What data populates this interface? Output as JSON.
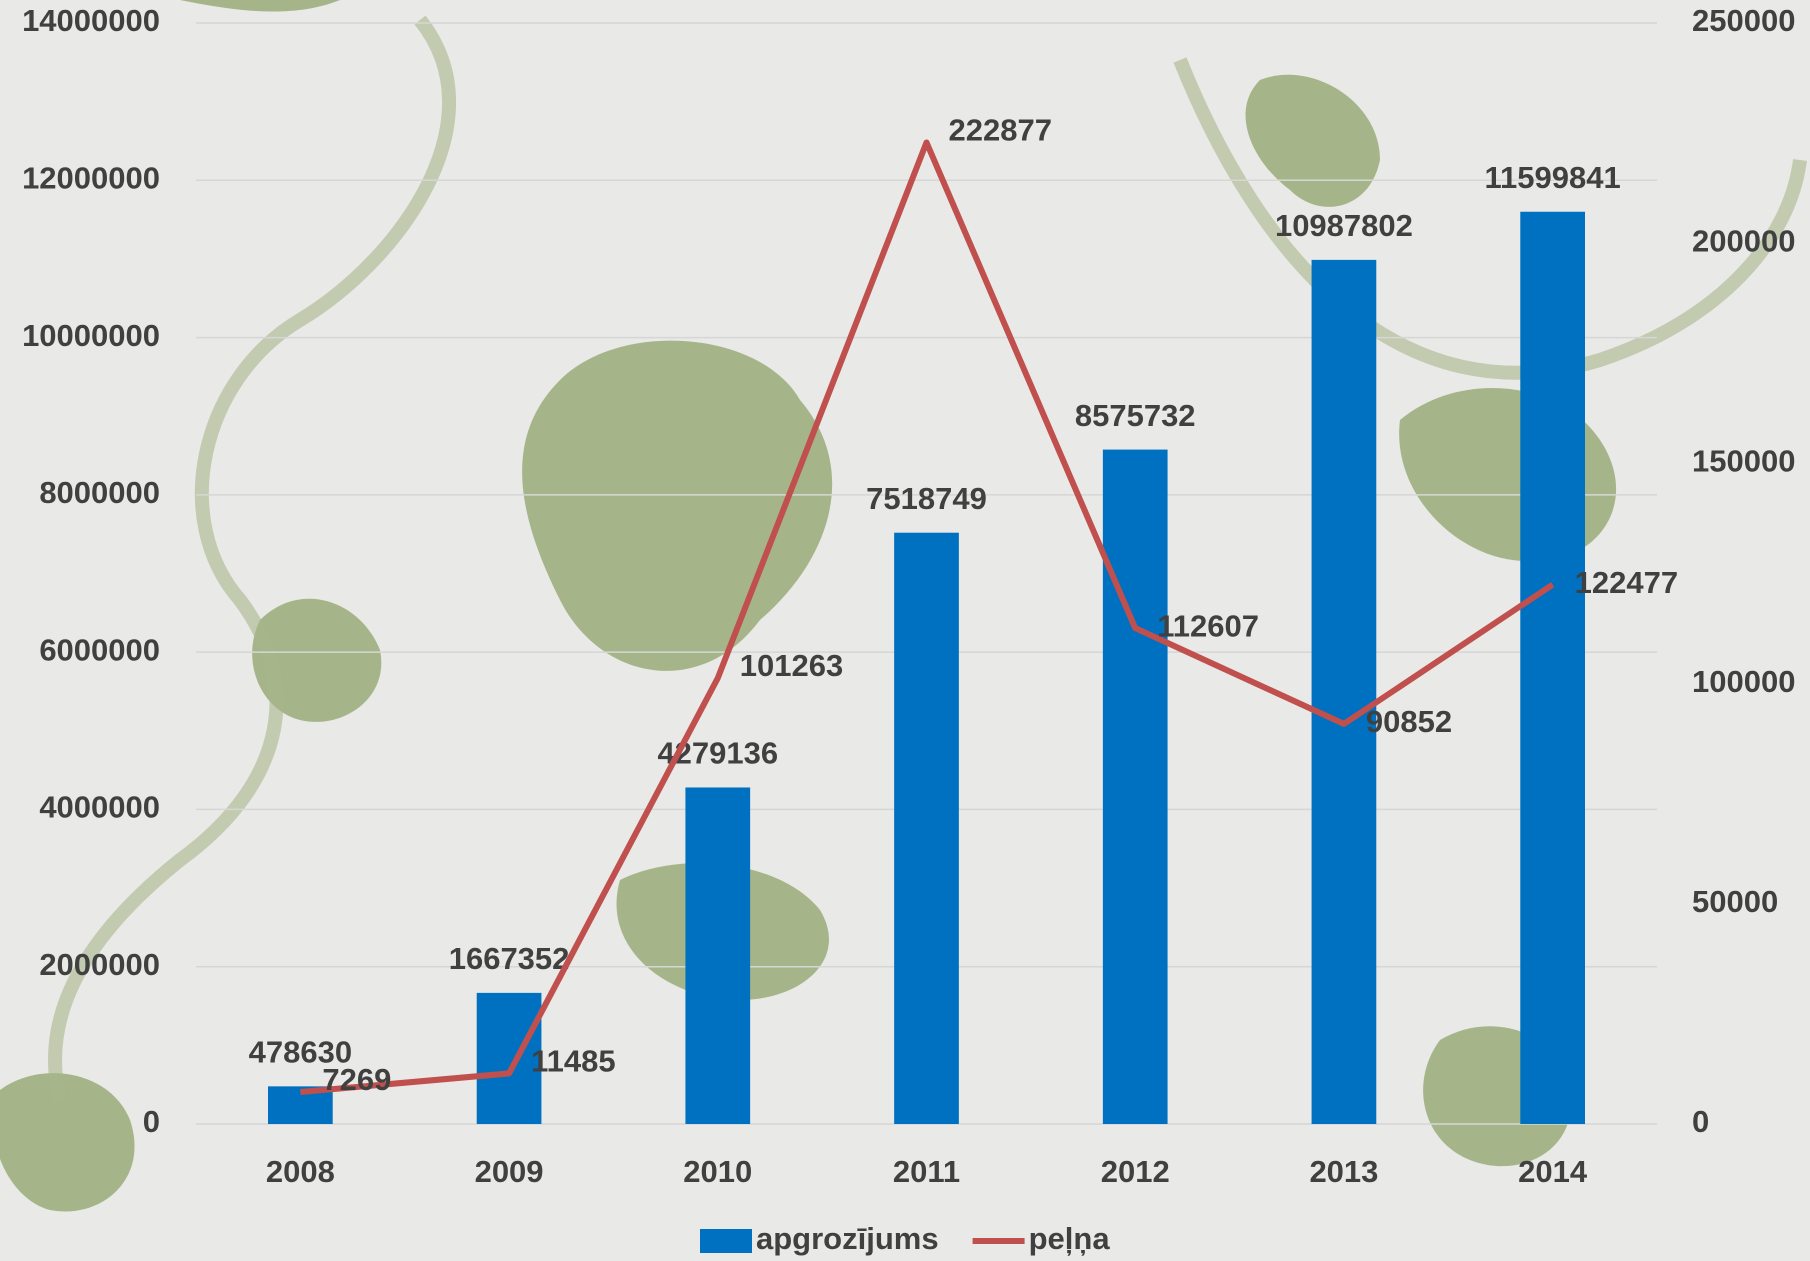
{
  "chart_data": {
    "type": "bar",
    "categories": [
      "2008",
      "2009",
      "2010",
      "2011",
      "2012",
      "2013",
      "2014"
    ],
    "series": [
      {
        "name": "apgrozījums",
        "type": "bar",
        "color": "#0070c0",
        "values": [
          478630,
          1667352,
          4279136,
          7518749,
          8575732,
          10987802,
          11599841
        ]
      },
      {
        "name": "peļņa",
        "type": "line",
        "axis": "y2",
        "color": "#c0504d",
        "values": [
          7269,
          11485,
          101263,
          222877,
          112607,
          90852,
          122477
        ]
      }
    ],
    "ylim": [
      0,
      14000000
    ],
    "yticks": [
      0,
      2000000,
      4000000,
      6000000,
      8000000,
      10000000,
      12000000,
      14000000
    ],
    "y2lim": [
      0,
      250000
    ],
    "y2ticks": [
      0,
      50000,
      100000,
      150000,
      200000,
      250000
    ],
    "grid": true,
    "legend": "bottom"
  }
}
